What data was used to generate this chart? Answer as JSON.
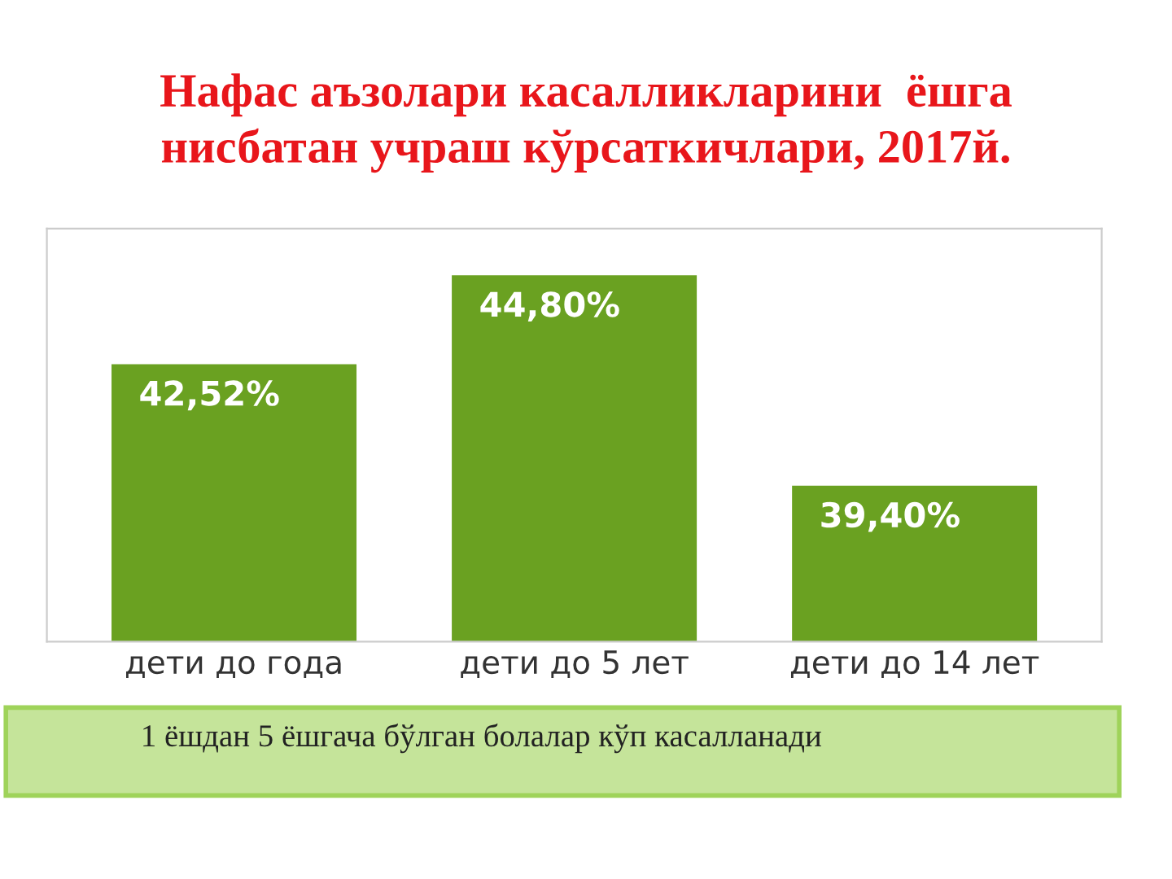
{
  "chart_data": {
    "type": "bar",
    "title": "Нафас аъзолари касалликларини  ёшга\nнисбатан учраш кўрсаткичлари, 2017й.",
    "categories": [
      "дети до года",
      "дети до 5 лет",
      "дети до 14 лет"
    ],
    "values": [
      42.52,
      44.8,
      39.4
    ],
    "value_labels": [
      "42,52%",
      "44,80%",
      "39,40%"
    ],
    "color": "#6aa121",
    "ylim": [
      35.4,
      46
    ],
    "tick_labels": "x",
    "grid": false,
    "annotations": [
      "1 ёшдан 5 ёшгача бўлган болалар кўп касалланади"
    ]
  }
}
